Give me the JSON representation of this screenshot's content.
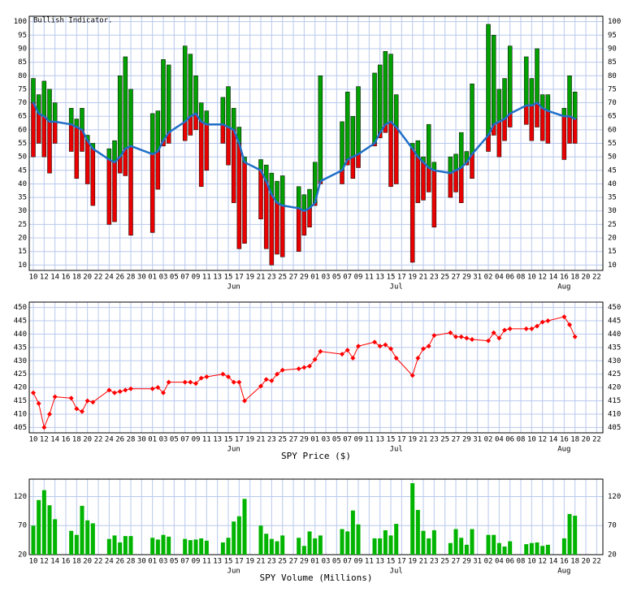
{
  "chart_data": [
    {
      "type": "range",
      "title": "Bullish Indicator.",
      "categories": [
        "10",
        null,
        "12",
        null,
        "14",
        null,
        "16",
        null,
        "18",
        null,
        "20",
        null,
        "22",
        null,
        "24",
        null,
        "26",
        null,
        "28",
        null,
        "30",
        null,
        "01",
        null,
        "03",
        null,
        "05",
        null,
        "07",
        null,
        "09",
        null,
        "11",
        null,
        "13",
        null,
        "15",
        null,
        "17",
        null,
        "19",
        null,
        "21",
        null,
        "23",
        null,
        "25",
        null,
        "27",
        null,
        "29",
        null,
        "01",
        null,
        "03",
        null,
        "05",
        null,
        "07",
        null,
        "09",
        null,
        "11",
        null,
        "13",
        null,
        "15",
        null,
        "17",
        null,
        "19",
        null,
        "21",
        null,
        "23",
        null,
        "25",
        null,
        "27",
        null,
        "29",
        null,
        "31",
        null,
        "02",
        null,
        "04",
        null,
        "06",
        null,
        "08",
        null,
        "10",
        null,
        "12",
        null,
        "14",
        null,
        "16",
        null,
        "18",
        null,
        "20",
        null,
        "22"
      ],
      "months": [
        "Jun",
        "Jul",
        "Aug"
      ],
      "bar_top": [
        79,
        73,
        78,
        75,
        70,
        null,
        null,
        68,
        64,
        68,
        58,
        55,
        null,
        null,
        53,
        56,
        80,
        87,
        75,
        null,
        null,
        null,
        66,
        67,
        86,
        84,
        null,
        null,
        91,
        88,
        80,
        70,
        67,
        null,
        null,
        72,
        76,
        68,
        61,
        50,
        null,
        null,
        49,
        47,
        44,
        41,
        43,
        null,
        null,
        39,
        36,
        38,
        48,
        80,
        null,
        null,
        null,
        63,
        74,
        65,
        76,
        null,
        null,
        81,
        84,
        89,
        88,
        73,
        null,
        null,
        55,
        56,
        50,
        62,
        48,
        null,
        null,
        50,
        51,
        59,
        52,
        77,
        null,
        null,
        99,
        95,
        75,
        79,
        91,
        null,
        null,
        87,
        79,
        90,
        73,
        73,
        null,
        null,
        68,
        80,
        74,
        null,
        null,
        null,
        null
      ],
      "line": [
        70,
        66,
        65,
        63,
        63,
        null,
        null,
        62,
        61,
        60,
        56,
        53,
        null,
        null,
        49,
        48,
        50,
        53,
        54,
        null,
        null,
        null,
        51,
        52,
        56,
        59,
        null,
        null,
        63,
        65,
        66,
        63,
        62,
        null,
        null,
        62,
        61,
        60,
        55,
        48,
        null,
        null,
        45,
        41,
        36,
        33,
        32,
        null,
        null,
        31,
        30,
        31,
        33,
        41,
        null,
        null,
        null,
        45,
        49,
        50,
        51,
        null,
        null,
        55,
        59,
        62,
        63,
        61,
        null,
        null,
        53,
        50,
        48,
        46,
        45,
        null,
        null,
        44,
        45,
        46,
        48,
        51,
        null,
        null,
        58,
        62,
        63,
        64,
        66,
        null,
        null,
        69,
        69,
        70,
        68,
        67,
        null,
        null,
        65,
        65,
        64,
        null,
        null,
        null,
        null
      ],
      "bar_bottom": [
        50,
        55,
        50,
        44,
        55,
        null,
        null,
        52,
        42,
        52,
        40,
        32,
        null,
        null,
        25,
        26,
        44,
        43,
        21,
        null,
        null,
        null,
        22,
        38,
        54,
        55,
        null,
        null,
        56,
        58,
        60,
        39,
        45,
        null,
        null,
        55,
        47,
        33,
        16,
        18,
        null,
        null,
        27,
        16,
        10,
        14,
        13,
        null,
        null,
        15,
        21,
        24,
        32,
        40,
        null,
        null,
        null,
        40,
        47,
        42,
        46,
        null,
        null,
        54,
        57,
        59,
        39,
        40,
        null,
        null,
        11,
        33,
        34,
        37,
        24,
        null,
        null,
        35,
        37,
        33,
        47,
        42,
        null,
        null,
        52,
        58,
        50,
        56,
        61,
        null,
        null,
        62,
        56,
        61,
        56,
        55,
        null,
        null,
        49,
        55,
        55,
        null,
        null,
        null,
        null
      ],
      "colors": {
        "up": "#00a000",
        "down": "#e80000",
        "line": "#1f6fc8"
      },
      "ylim": [
        8,
        102
      ],
      "yticks": [
        10,
        15,
        20,
        25,
        30,
        35,
        40,
        45,
        50,
        55,
        60,
        65,
        70,
        75,
        80,
        85,
        90,
        95,
        100
      ],
      "grid": true
    },
    {
      "type": "line",
      "xlabel": "SPY Price ($)",
      "categories": [
        "10",
        null,
        "12",
        null,
        "14",
        null,
        "16",
        null,
        "18",
        null,
        "20",
        null,
        "22",
        null,
        "24",
        null,
        "26",
        null,
        "28",
        null,
        "30",
        null,
        "01",
        null,
        "03",
        null,
        "05",
        null,
        "07",
        null,
        "09",
        null,
        "11",
        null,
        "13",
        null,
        "15",
        null,
        "17",
        null,
        "19",
        null,
        "21",
        null,
        "23",
        null,
        "25",
        null,
        "27",
        null,
        "29",
        null,
        "01",
        null,
        "03",
        null,
        "05",
        null,
        "07",
        null,
        "09",
        null,
        "11",
        null,
        "13",
        null,
        "15",
        null,
        "17",
        null,
        "19",
        null,
        "21",
        null,
        "23",
        null,
        "25",
        null,
        "27",
        null,
        "29",
        null,
        "31",
        null,
        "02",
        null,
        "04",
        null,
        "06",
        null,
        "08",
        null,
        "10",
        null,
        "12",
        null,
        "14",
        null,
        "16",
        null,
        "18",
        null,
        "20",
        null,
        "22"
      ],
      "months": [
        "Jun",
        "Jul",
        "Aug"
      ],
      "values": [
        418,
        414,
        405,
        410,
        416.5,
        null,
        null,
        416,
        412,
        411,
        415,
        414.5,
        null,
        null,
        419,
        418,
        418.5,
        419,
        419.5,
        null,
        null,
        null,
        419.5,
        420,
        418,
        422,
        null,
        null,
        422,
        422,
        421.5,
        423.5,
        424,
        null,
        null,
        425,
        424,
        422,
        422,
        415,
        null,
        null,
        420.5,
        423,
        422.5,
        425,
        426.5,
        null,
        null,
        427,
        427.5,
        428,
        430.5,
        433.5,
        null,
        null,
        null,
        432.5,
        434,
        431,
        435.5,
        null,
        null,
        437,
        435.5,
        436,
        434.5,
        431,
        null,
        null,
        424.5,
        431,
        434.5,
        435.5,
        439.5,
        null,
        null,
        440.5,
        439,
        439,
        438.5,
        438,
        null,
        null,
        437.5,
        440.5,
        438.5,
        441.5,
        442,
        null,
        null,
        442,
        442,
        443,
        444.5,
        445,
        null,
        null,
        446.5,
        443.5,
        439,
        null,
        null,
        null,
        null
      ],
      "color": "#ff0000",
      "ylim": [
        403,
        452
      ],
      "yticks": [
        405,
        410,
        415,
        420,
        425,
        430,
        435,
        440,
        445,
        450
      ],
      "grid": true
    },
    {
      "type": "bar",
      "xlabel": "SPY Volume (Millions)",
      "categories": [
        "10",
        null,
        "12",
        null,
        "14",
        null,
        "16",
        null,
        "18",
        null,
        "20",
        null,
        "22",
        null,
        "24",
        null,
        "26",
        null,
        "28",
        null,
        "30",
        null,
        "01",
        null,
        "03",
        null,
        "05",
        null,
        "07",
        null,
        "09",
        null,
        "11",
        null,
        "13",
        null,
        "15",
        null,
        "17",
        null,
        "19",
        null,
        "21",
        null,
        "23",
        null,
        "25",
        null,
        "27",
        null,
        "29",
        null,
        "01",
        null,
        "03",
        null,
        "05",
        null,
        "07",
        null,
        "09",
        null,
        "11",
        null,
        "13",
        null,
        "15",
        null,
        "17",
        null,
        "19",
        null,
        "21",
        null,
        "23",
        null,
        "25",
        null,
        "27",
        null,
        "29",
        null,
        "31",
        null,
        "02",
        null,
        "04",
        null,
        "06",
        null,
        "08",
        null,
        "10",
        null,
        "12",
        null,
        "14",
        null,
        "16",
        null,
        "18",
        null,
        "20",
        null,
        "22"
      ],
      "months": [
        "Jun",
        "Jul",
        "Aug"
      ],
      "values": [
        70,
        114,
        131,
        105,
        81,
        null,
        null,
        61,
        54,
        104,
        79,
        74,
        null,
        null,
        47,
        53,
        41,
        52,
        52,
        null,
        null,
        null,
        49,
        46,
        54,
        51,
        null,
        null,
        47,
        45,
        46,
        48,
        44,
        null,
        null,
        41,
        49,
        77,
        86,
        116,
        null,
        null,
        70,
        56,
        47,
        43,
        53,
        null,
        null,
        49,
        35,
        60,
        48,
        53,
        null,
        null,
        null,
        64,
        60,
        96,
        72,
        null,
        null,
        48,
        48,
        62,
        53,
        73,
        null,
        null,
        143,
        97,
        61,
        48,
        62,
        null,
        null,
        40,
        64,
        49,
        37,
        64,
        null,
        null,
        54,
        54,
        40,
        34,
        43,
        null,
        null,
        38,
        40,
        41,
        35,
        37,
        null,
        null,
        48,
        90,
        87,
        null,
        null,
        null,
        null
      ],
      "color": "#00b400",
      "ylim": [
        20,
        150
      ],
      "yticks": [
        20,
        70,
        120
      ],
      "grid": true
    }
  ]
}
